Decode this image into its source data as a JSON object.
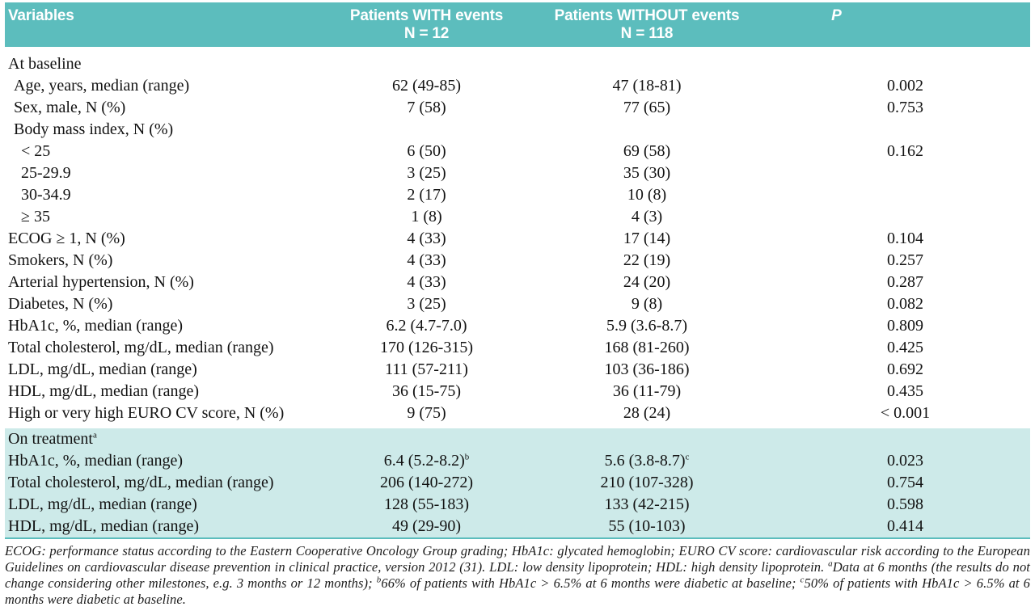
{
  "colors": {
    "header_bg": "#5cbdbd",
    "treatment_bg": "#cdeae9",
    "border": "#5cbdbd",
    "header_text": "#ffffff",
    "body_text": "#121212"
  },
  "header": {
    "variables": "Variables",
    "with_events": {
      "line1": "Patients WITH events",
      "line2": "N = 12"
    },
    "without_events": {
      "line1": "Patients WITHOUT events",
      "line2": "N = 118"
    },
    "p": "P"
  },
  "baseline_rows": [
    {
      "label": "At baseline",
      "indent": 0,
      "c1": "",
      "c2": "",
      "p": ""
    },
    {
      "label": "Age, years, median (range)",
      "indent": 1,
      "c1": "62 (49-85)",
      "c2": "47 (18-81)",
      "p": "0.002"
    },
    {
      "label": "Sex, male, N (%)",
      "indent": 1,
      "c1": "7 (58)",
      "c2": "77 (65)",
      "p": "0.753"
    },
    {
      "label": "Body mass index, N (%)",
      "indent": 1,
      "c1": "",
      "c2": "",
      "p": ""
    },
    {
      "label": "< 25",
      "indent": 2,
      "c1": "6 (50)",
      "c2": "69 (58)",
      "p": "0.162"
    },
    {
      "label": "25-29.9",
      "indent": 2,
      "c1": "3 (25)",
      "c2": "35 (30)",
      "p": ""
    },
    {
      "label": "30-34.9",
      "indent": 2,
      "c1": "2 (17)",
      "c2": "10 (8)",
      "p": ""
    },
    {
      "label": "≥ 35",
      "indent": 2,
      "c1": "1 (8)",
      "c2": "4 (3)",
      "p": ""
    },
    {
      "label": "ECOG ≥ 1, N (%)",
      "indent": 0,
      "c1": "4 (33)",
      "c2": "17 (14)",
      "p": "0.104"
    },
    {
      "label": "Smokers, N (%)",
      "indent": 0,
      "c1": "4 (33)",
      "c2": "22 (19)",
      "p": "0.257"
    },
    {
      "label": "Arterial hypertension, N (%)",
      "indent": 0,
      "c1": "4 (33)",
      "c2": "24 (20)",
      "p": "0.287"
    },
    {
      "label": "Diabetes, N (%)",
      "indent": 0,
      "c1": "3 (25)",
      "c2": "9 (8)",
      "p": "0.082"
    },
    {
      "label": "HbA1c, %, median (range)",
      "indent": 0,
      "c1": "6.2 (4.7-7.0)",
      "c2": "5.9 (3.6-8.7)",
      "p": "0.809"
    },
    {
      "label": "Total cholesterol, mg/dL, median (range)",
      "indent": 0,
      "c1": "170 (126-315)",
      "c2": "168 (81-260)",
      "p": "0.425"
    },
    {
      "label": "LDL, mg/dL, median (range)",
      "indent": 0,
      "c1": "111 (57-211)",
      "c2": "103 (36-186)",
      "p": "0.692"
    },
    {
      "label": "HDL, mg/dL, median (range)",
      "indent": 0,
      "c1": "36 (15-75)",
      "c2": "36 (11-79)",
      "p": "0.435"
    },
    {
      "label": "High or very high EURO CV score, N (%)",
      "indent": 0,
      "c1": "9 (75)",
      "c2": "28 (24)",
      "p": "< 0.001"
    }
  ],
  "treatment_rows": [
    {
      "label": "On treatment",
      "label_sup": "a",
      "indent": 0,
      "c1": "",
      "c2": "",
      "p": ""
    },
    {
      "label": "HbA1c, %, median (range)",
      "indent": 0,
      "c1": "6.4 (5.2-8.2)",
      "c1_sup": "b",
      "c2": "5.6 (3.8-8.7)",
      "c2_sup": "c",
      "p": "0.023"
    },
    {
      "label": "Total cholesterol, mg/dL, median (range)",
      "indent": 0,
      "c1": "206 (140-272)",
      "c2": "210 (107-328)",
      "p": "0.754"
    },
    {
      "label": "LDL, mg/dL, median (range)",
      "indent": 0,
      "c1": "128 (55-183)",
      "c2": "133 (42-215)",
      "p": "0.598"
    },
    {
      "label": "HDL, mg/dL, median (range)",
      "indent": 0,
      "c1": "49 (29-90)",
      "c2": "55 (10-103)",
      "p": "0.414"
    }
  ],
  "footnote": {
    "parts": [
      {
        "t": "ECOG: performance status according to the Eastern Cooperative Oncology Group grading; HbA1c: glycated hemoglobin; EURO CV score: cardiovascular risk according to the European Guidelines on cardiovascular disease prevention in clinical practice, version 2012 (31). LDL: low density lipoprotein; HDL: high density lipoprotein. "
      },
      {
        "sup": "a"
      },
      {
        "t": "Data at 6 months (the results do not change considering other milestones, e.g. 3 months or 12 months); "
      },
      {
        "sup": "b"
      },
      {
        "t": "66% of patients with HbA1c > 6.5% at 6 months were diabetic at baseline; "
      },
      {
        "sup": "c"
      },
      {
        "t": "50% of patients with HbA1c > 6.5% at 6 months were diabetic at baseline."
      }
    ]
  }
}
